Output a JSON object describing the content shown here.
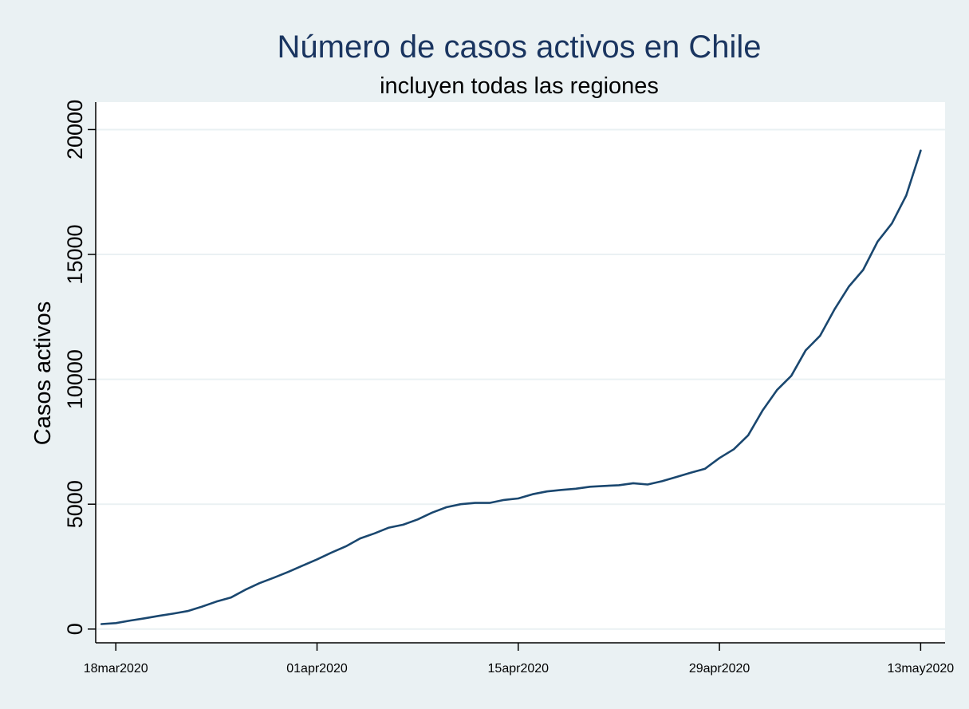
{
  "chart_data": {
    "type": "line",
    "title": "Número de casos activos en Chile",
    "subtitle": "incluyen todas las regiones",
    "xlabel": "",
    "ylabel": "Casos activos",
    "x_ticks": [
      "18mar2020",
      "01apr2020",
      "15apr2020",
      "29apr2020",
      "13may2020"
    ],
    "y_ticks": [
      0,
      5000,
      10000,
      15000,
      20000
    ],
    "ylim": [
      -550,
      21100
    ],
    "xlim": [
      "16mar2020",
      "14may2020"
    ],
    "grid": true,
    "legend": "none",
    "colors": {
      "background": "#eaf1f3",
      "plot_background": "#ffffff",
      "line": "#1a476f",
      "title": "#1a3560",
      "grid": "#eaf1f3",
      "axis": "#000000"
    },
    "series": [
      {
        "x": [
          "2020-03-17",
          "2020-03-18",
          "2020-03-19",
          "2020-03-20",
          "2020-03-21",
          "2020-03-22",
          "2020-03-23",
          "2020-03-24",
          "2020-03-25",
          "2020-03-26",
          "2020-03-27",
          "2020-03-28",
          "2020-03-29",
          "2020-03-30",
          "2020-03-31",
          "2020-04-01",
          "2020-04-02",
          "2020-04-03",
          "2020-04-04",
          "2020-04-05",
          "2020-04-06",
          "2020-04-07",
          "2020-04-08",
          "2020-04-09",
          "2020-04-10",
          "2020-04-11",
          "2020-04-12",
          "2020-04-13",
          "2020-04-14",
          "2020-04-15",
          "2020-04-16",
          "2020-04-17",
          "2020-04-18",
          "2020-04-19",
          "2020-04-20",
          "2020-04-21",
          "2020-04-22",
          "2020-04-23",
          "2020-04-24",
          "2020-04-25",
          "2020-04-26",
          "2020-04-27",
          "2020-04-28",
          "2020-04-29",
          "2020-04-30",
          "2020-05-01",
          "2020-05-02",
          "2020-05-03",
          "2020-05-04",
          "2020-05-05",
          "2020-05-06",
          "2020-05-07",
          "2020-05-08",
          "2020-05-09",
          "2020-05-10",
          "2020-05-11",
          "2020-05-12",
          "2020-05-13"
        ],
        "values": [
          200,
          240,
          340,
          430,
          530,
          620,
          720,
          900,
          1100,
          1260,
          1570,
          1840,
          2060,
          2290,
          2540,
          2790,
          3060,
          3310,
          3630,
          3830,
          4060,
          4180,
          4390,
          4660,
          4880,
          5000,
          5050,
          5050,
          5170,
          5230,
          5400,
          5510,
          5570,
          5620,
          5700,
          5730,
          5760,
          5840,
          5790,
          5920,
          6090,
          6260,
          6420,
          6850,
          7200,
          7760,
          8750,
          9570,
          10140,
          11160,
          11740,
          12790,
          13710,
          14380,
          15510,
          16240,
          17360,
          19160
        ]
      }
    ]
  }
}
